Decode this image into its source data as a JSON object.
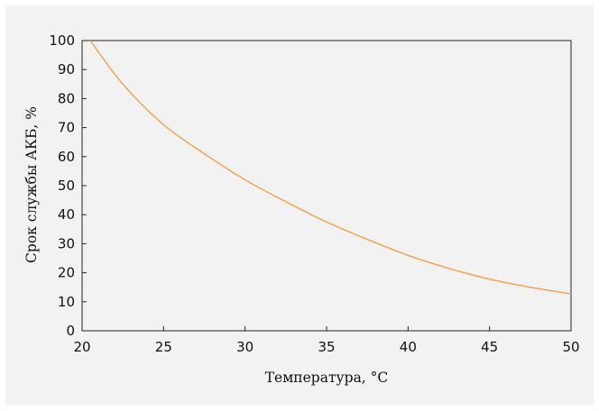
{
  "chart_data": {
    "type": "line",
    "title": "",
    "xlabel": "Температура, °C",
    "ylabel": "Срок службы АКБ, %",
    "xlim": [
      20,
      50
    ],
    "ylim": [
      0,
      100
    ],
    "x_ticks": [
      "20",
      "25",
      "30",
      "35",
      "40",
      "45",
      "50"
    ],
    "y_ticks": [
      "0",
      "10",
      "20",
      "30",
      "40",
      "50",
      "60",
      "70",
      "80",
      "90",
      "100"
    ],
    "grid": false,
    "legend": "none",
    "series": [
      {
        "color": "#f4a04a",
        "x": [
          20.5,
          22.5,
          25,
          27.5,
          30,
          32.5,
          35,
          37.5,
          40,
          42.5,
          45,
          47.5,
          50
        ],
        "y": [
          100,
          85,
          71,
          61,
          52,
          44.5,
          37.5,
          31.5,
          26,
          21.5,
          17.8,
          15,
          12.7
        ]
      }
    ]
  }
}
